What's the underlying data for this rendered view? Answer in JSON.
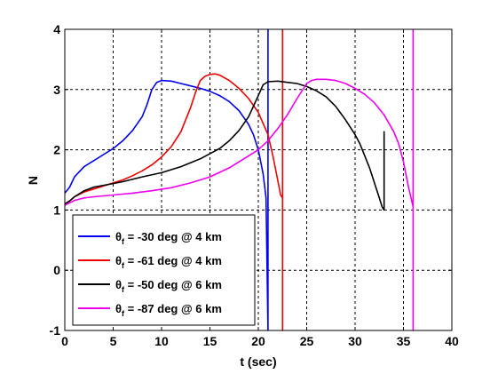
{
  "chart_data": {
    "type": "line",
    "title": "",
    "xlabel": "t (sec)",
    "ylabel": "N",
    "xlim": [
      0,
      40
    ],
    "ylim": [
      -1,
      4
    ],
    "xticks": [
      0,
      5,
      10,
      15,
      20,
      25,
      30,
      35,
      40
    ],
    "yticks": [
      -1,
      0,
      1,
      2,
      3,
      4
    ],
    "grid": true,
    "legend_position": "bottom-left",
    "series": [
      {
        "name_prefix": "θ",
        "name_sub": "f",
        "name_suffix": " = -30 deg @ 4 km",
        "color": "#0000ee",
        "x": [
          0,
          0.5,
          1,
          2,
          3,
          4,
          5,
          6,
          7,
          8,
          8.5,
          9,
          9.5,
          10,
          11,
          12,
          13,
          14,
          15,
          16,
          17,
          18,
          19,
          19.5,
          20,
          20.5,
          20.8,
          21,
          21,
          21,
          21
        ],
        "y": [
          1.28,
          1.38,
          1.55,
          1.72,
          1.82,
          1.92,
          2.02,
          2.15,
          2.32,
          2.55,
          2.75,
          3.0,
          3.12,
          3.15,
          3.14,
          3.1,
          3.06,
          3.02,
          2.97,
          2.9,
          2.8,
          2.65,
          2.42,
          2.25,
          2.0,
          1.6,
          1.2,
          -1,
          4,
          -1,
          -1
        ]
      },
      {
        "name_prefix": "θ",
        "name_sub": "f",
        "name_suffix": " = -61 deg @ 4 km",
        "color": "#ee0000",
        "x": [
          0,
          0.5,
          1,
          2,
          3,
          4,
          5,
          6,
          7,
          8,
          9,
          10,
          11,
          12,
          13,
          13.5,
          14,
          14.5,
          15,
          15.5,
          16,
          17,
          18,
          19,
          20,
          21,
          21.5,
          22,
          22.3,
          22.5,
          22.5,
          22.5
        ],
        "y": [
          1.1,
          1.15,
          1.22,
          1.3,
          1.35,
          1.4,
          1.45,
          1.5,
          1.57,
          1.65,
          1.75,
          1.88,
          2.05,
          2.3,
          2.7,
          2.95,
          3.15,
          3.22,
          3.25,
          3.26,
          3.24,
          3.15,
          3.02,
          2.85,
          2.62,
          2.25,
          1.9,
          1.5,
          1.25,
          1.2,
          -1,
          4
        ]
      },
      {
        "name_prefix": "θ",
        "name_sub": "f",
        "name_suffix": " = -50 deg @ 6 km",
        "color": "#000000",
        "x": [
          0,
          0.5,
          1,
          2,
          3,
          4,
          5,
          6,
          8,
          10,
          12,
          14,
          16,
          17,
          18,
          19,
          20,
          20.5,
          21,
          22,
          23,
          24,
          25,
          26,
          27,
          28,
          29,
          30,
          30.5,
          31,
          31.5,
          32,
          32.5,
          32.8,
          33,
          33,
          33
        ],
        "y": [
          1.1,
          1.15,
          1.22,
          1.32,
          1.38,
          1.41,
          1.44,
          1.47,
          1.55,
          1.62,
          1.72,
          1.85,
          2.02,
          2.15,
          2.32,
          2.55,
          2.9,
          3.08,
          3.13,
          3.14,
          3.12,
          3.1,
          3.05,
          2.98,
          2.88,
          2.72,
          2.5,
          2.25,
          2.1,
          1.9,
          1.7,
          1.45,
          1.2,
          1.05,
          1.0,
          2.3,
          1.0
        ]
      },
      {
        "name_prefix": "θ",
        "name_sub": "f",
        "name_suffix": " = -87 deg @ 6 km",
        "color": "#ee00ee",
        "x": [
          0,
          0.5,
          1,
          2,
          3,
          5,
          7,
          9,
          11,
          13,
          15,
          17,
          19,
          20,
          21,
          22,
          23,
          24,
          25,
          25.5,
          26,
          27,
          28,
          29,
          30,
          31,
          32,
          33,
          34,
          34.5,
          35,
          35.5,
          36,
          36,
          36
        ],
        "y": [
          1.08,
          1.12,
          1.16,
          1.2,
          1.22,
          1.25,
          1.28,
          1.32,
          1.37,
          1.45,
          1.55,
          1.7,
          1.9,
          2.0,
          2.15,
          2.35,
          2.58,
          2.85,
          3.1,
          3.15,
          3.17,
          3.17,
          3.15,
          3.1,
          3.02,
          2.92,
          2.78,
          2.58,
          2.3,
          2.1,
          1.8,
          1.4,
          1.05,
          -1,
          4
        ]
      }
    ]
  }
}
